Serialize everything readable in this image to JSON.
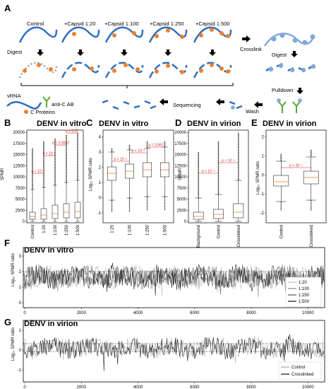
{
  "panels": {
    "A": "A",
    "B": "B",
    "C": "C",
    "D": "D",
    "E": "E",
    "F": "F",
    "G": "G"
  },
  "schematic": {
    "conditions": [
      "Control",
      "+Capsid 1:20",
      "+Capsid 1:100",
      "+Capsid 1:250",
      "+Capsid 1:500"
    ],
    "crosslink": "Crosslink",
    "digest_left": "Digest",
    "digest_right": "Digest",
    "pulldown": "Pulldown",
    "wash": "Wash",
    "sequencing": "Sequencing",
    "legend_vrna": "vRNA",
    "legend_antibody": "anti-C AB",
    "legend_proteins": "C Proteins",
    "colors": {
      "rna": "#2f6fc0",
      "protein": "#f07f2a",
      "antibody": "#5aa832",
      "light_rna": "#7fa9d8",
      "gray_rna": "#9a9a9a"
    }
  },
  "boxplots": {
    "B": {
      "title": "DENV in vitro",
      "ylabel": "SPMR",
      "yticks": [
        "0",
        "2500",
        "5000",
        "7500",
        "10000",
        "12500",
        "15000",
        "17500",
        "20000"
      ],
      "categories": [
        "Control",
        "1:20",
        "1:100",
        "1:250",
        "1:500"
      ],
      "pvalues": [
        "p < 10⁻⁶",
        "p < 10⁻⁶",
        "p = 0.0002",
        "p = 0.02"
      ]
    },
    "C": {
      "title": "DENV in vitro",
      "ylabel": "Log₁₀ SPMR ratio",
      "yticks": [
        "-1",
        "0",
        "1",
        "2",
        "3",
        "4"
      ],
      "categories": [
        "1:20",
        "1:100",
        "1:250",
        "1:500"
      ],
      "pvalues": [
        "p < 10⁻⁶",
        "p < 10⁻⁶",
        "p = 0.062"
      ]
    },
    "D": {
      "title": "DENV in virion",
      "ylabel": "SPMR",
      "yticks": [
        "0",
        "2500",
        "5000",
        "7500",
        "10000",
        "12500",
        "15000",
        "17500",
        "20000"
      ],
      "categories": [
        "Background",
        "Control",
        "Crosslinked"
      ],
      "pvalues": [
        "p < 10⁻⁶",
        "p < 10⁻⁶"
      ]
    },
    "E": {
      "title": "DENV in virion",
      "ylabel": "Log₁₀ SPMR ratio",
      "yticks": [
        "-2",
        "-1",
        "0",
        "1",
        "2"
      ],
      "categories": [
        "Control",
        "Crosslinked"
      ],
      "pvalues": [
        "p < 10⁻⁶"
      ]
    }
  },
  "tracks": {
    "F": {
      "title": "DENV in vitro",
      "ylabel": "Log₁₀ SPMR ratio",
      "yticks": [
        "0",
        "1",
        "2",
        "3"
      ],
      "xticks": [
        "0",
        "2000",
        "4000",
        "6000",
        "8000",
        "10000"
      ],
      "legend": [
        "1:20",
        "1:100",
        "1:250",
        "1:500"
      ]
    },
    "G": {
      "title": "DENV in virion",
      "ylabel": "Log₁₀ SPMR ratio",
      "yticks": [
        "-1",
        "0",
        "1"
      ],
      "xticks": [
        "0",
        "2000",
        "4000",
        "6000",
        "8000",
        "10000"
      ],
      "legend": [
        "Control",
        "Crosslinked"
      ]
    }
  }
}
